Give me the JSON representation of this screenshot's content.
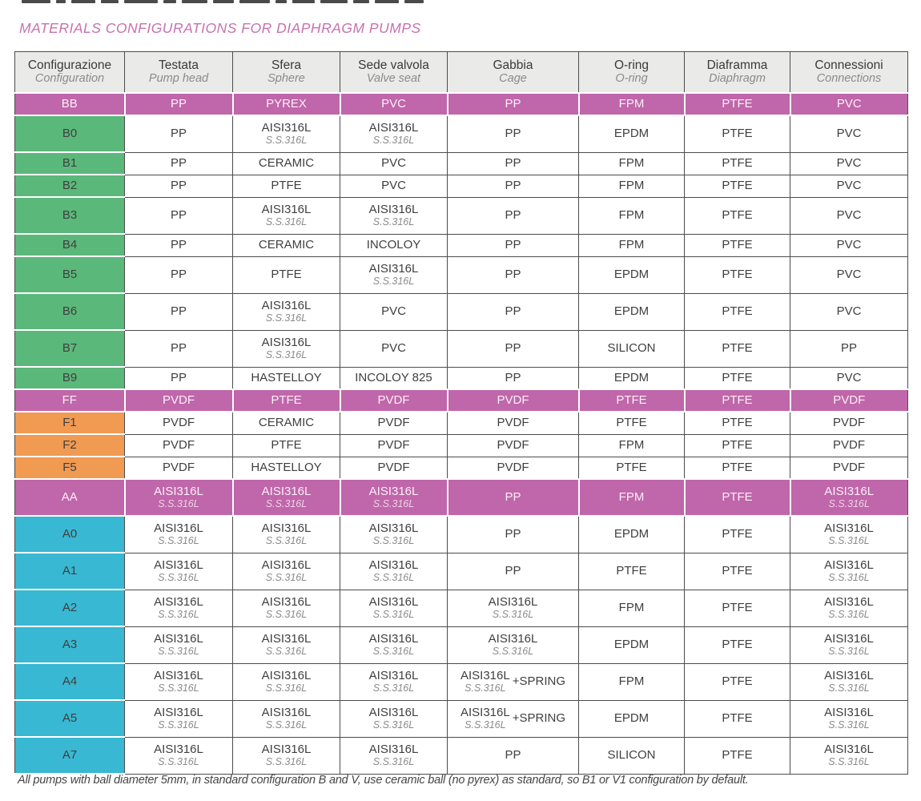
{
  "title": "MATERIALS CONFIGURATIONS FOR DIAPHRAGM PUMPS",
  "footnote": "All pumps with ball diameter 5mm, in standard configuration B and V, use ceramic ball (no pyrex) as standard, so B1 or V1 configuration by default.",
  "colors": {
    "title_pink": "#c671b1",
    "highlight_magenta": "#c066aa",
    "green_label": "#5bb87b",
    "orange_label": "#f09a52",
    "cyan_label": "#38b8d2",
    "header_gray": "#eaeae8",
    "border_dark": "#4c4c4c"
  },
  "table": {
    "columns": [
      {
        "it": "Configurazione",
        "en": "Configuration"
      },
      {
        "it": "Testata",
        "en": "Pump head"
      },
      {
        "it": "Sfera",
        "en": "Sphere"
      },
      {
        "it": "Sede valvola",
        "en": "Valve seat"
      },
      {
        "it": "Gabbia",
        "en": "Cage"
      },
      {
        "it": "O-ring",
        "en": "O-ring"
      },
      {
        "it": "Diaframma",
        "en": "Diaphragm"
      },
      {
        "it": "Connessioni",
        "en": "Connections"
      }
    ],
    "rows": [
      {
        "code": "BB",
        "group": "highlight",
        "cells": [
          [
            "PP"
          ],
          [
            "PYREX"
          ],
          [
            "PVC"
          ],
          [
            "PP"
          ],
          [
            "FPM"
          ],
          [
            "PTFE"
          ],
          [
            "PVC"
          ]
        ]
      },
      {
        "code": "B0",
        "group": "green",
        "cells": [
          [
            "PP"
          ],
          [
            "AISI316L",
            "S.S.316L"
          ],
          [
            "AISI316L",
            "S.S.316L"
          ],
          [
            "PP"
          ],
          [
            "EPDM"
          ],
          [
            "PTFE"
          ],
          [
            "PVC"
          ]
        ]
      },
      {
        "code": "B1",
        "group": "green",
        "cells": [
          [
            "PP"
          ],
          [
            "CERAMIC"
          ],
          [
            "PVC"
          ],
          [
            "PP"
          ],
          [
            "FPM"
          ],
          [
            "PTFE"
          ],
          [
            "PVC"
          ]
        ]
      },
      {
        "code": "B2",
        "group": "green",
        "cells": [
          [
            "PP"
          ],
          [
            "PTFE"
          ],
          [
            "PVC"
          ],
          [
            "PP"
          ],
          [
            "FPM"
          ],
          [
            "PTFE"
          ],
          [
            "PVC"
          ]
        ]
      },
      {
        "code": "B3",
        "group": "green",
        "cells": [
          [
            "PP"
          ],
          [
            "AISI316L",
            "S.S.316L"
          ],
          [
            "AISI316L",
            "S.S.316L"
          ],
          [
            "PP"
          ],
          [
            "FPM"
          ],
          [
            "PTFE"
          ],
          [
            "PVC"
          ]
        ]
      },
      {
        "code": "B4",
        "group": "green",
        "cells": [
          [
            "PP"
          ],
          [
            "CERAMIC"
          ],
          [
            "INCOLOY"
          ],
          [
            "PP"
          ],
          [
            "FPM"
          ],
          [
            "PTFE"
          ],
          [
            "PVC"
          ]
        ]
      },
      {
        "code": "B5",
        "group": "green",
        "cells": [
          [
            "PP"
          ],
          [
            "PTFE"
          ],
          [
            "AISI316L",
            "S.S.316L"
          ],
          [
            "PP"
          ],
          [
            "EPDM"
          ],
          [
            "PTFE"
          ],
          [
            "PVC"
          ]
        ]
      },
      {
        "code": "B6",
        "group": "green",
        "cells": [
          [
            "PP"
          ],
          [
            "AISI316L",
            "S.S.316L"
          ],
          [
            "PVC"
          ],
          [
            "PP"
          ],
          [
            "EPDM"
          ],
          [
            "PTFE"
          ],
          [
            "PVC"
          ]
        ]
      },
      {
        "code": "B7",
        "group": "green",
        "cells": [
          [
            "PP"
          ],
          [
            "AISI316L",
            "S.S.316L"
          ],
          [
            "PVC"
          ],
          [
            "PP"
          ],
          [
            "SILICON"
          ],
          [
            "PTFE"
          ],
          [
            "PP"
          ]
        ]
      },
      {
        "code": "B9",
        "group": "green",
        "cells": [
          [
            "PP"
          ],
          [
            "HASTELLOY"
          ],
          [
            "INCOLOY 825"
          ],
          [
            "PP"
          ],
          [
            "EPDM"
          ],
          [
            "PTFE"
          ],
          [
            "PVC"
          ]
        ]
      },
      {
        "code": "FF",
        "group": "highlight",
        "cells": [
          [
            "PVDF"
          ],
          [
            "PTFE"
          ],
          [
            "PVDF"
          ],
          [
            "PVDF"
          ],
          [
            "PTFE"
          ],
          [
            "PTFE"
          ],
          [
            "PVDF"
          ]
        ]
      },
      {
        "code": "F1",
        "group": "orange",
        "cells": [
          [
            "PVDF"
          ],
          [
            "CERAMIC"
          ],
          [
            "PVDF"
          ],
          [
            "PVDF"
          ],
          [
            "PTFE"
          ],
          [
            "PTFE"
          ],
          [
            "PVDF"
          ]
        ]
      },
      {
        "code": "F2",
        "group": "orange",
        "cells": [
          [
            "PVDF"
          ],
          [
            "PTFE"
          ],
          [
            "PVDF"
          ],
          [
            "PVDF"
          ],
          [
            "FPM"
          ],
          [
            "PTFE"
          ],
          [
            "PVDF"
          ]
        ]
      },
      {
        "code": "F5",
        "group": "orange",
        "cells": [
          [
            "PVDF"
          ],
          [
            "HASTELLOY"
          ],
          [
            "PVDF"
          ],
          [
            "PVDF"
          ],
          [
            "PTFE"
          ],
          [
            "PTFE"
          ],
          [
            "PVDF"
          ]
        ]
      },
      {
        "code": "AA",
        "group": "highlight",
        "cells": [
          [
            "AISI316L",
            "S.S.316L"
          ],
          [
            "AISI316L",
            "S.S.316L"
          ],
          [
            "AISI316L",
            "S.S.316L"
          ],
          [
            "PP"
          ],
          [
            "FPM"
          ],
          [
            "PTFE"
          ],
          [
            "AISI316L",
            "S.S.316L"
          ]
        ]
      },
      {
        "code": "A0",
        "group": "cyan",
        "cells": [
          [
            "AISI316L",
            "S.S.316L"
          ],
          [
            "AISI316L",
            "S.S.316L"
          ],
          [
            "AISI316L",
            "S.S.316L"
          ],
          [
            "PP"
          ],
          [
            "EPDM"
          ],
          [
            "PTFE"
          ],
          [
            "AISI316L",
            "S.S.316L"
          ]
        ]
      },
      {
        "code": "A1",
        "group": "cyan",
        "cells": [
          [
            "AISI316L",
            "S.S.316L"
          ],
          [
            "AISI316L",
            "S.S.316L"
          ],
          [
            "AISI316L",
            "S.S.316L"
          ],
          [
            "PP"
          ],
          [
            "PTFE"
          ],
          [
            "PTFE"
          ],
          [
            "AISI316L",
            "S.S.316L"
          ]
        ]
      },
      {
        "code": "A2",
        "group": "cyan",
        "cells": [
          [
            "AISI316L",
            "S.S.316L"
          ],
          [
            "AISI316L",
            "S.S.316L"
          ],
          [
            "AISI316L",
            "S.S.316L"
          ],
          [
            "AISI316L",
            "S.S.316L"
          ],
          [
            "FPM"
          ],
          [
            "PTFE"
          ],
          [
            "AISI316L",
            "S.S.316L"
          ]
        ]
      },
      {
        "code": "A3",
        "group": "cyan",
        "cells": [
          [
            "AISI316L",
            "S.S.316L"
          ],
          [
            "AISI316L",
            "S.S.316L"
          ],
          [
            "AISI316L",
            "S.S.316L"
          ],
          [
            "AISI316L",
            "S.S.316L"
          ],
          [
            "EPDM"
          ],
          [
            "PTFE"
          ],
          [
            "AISI316L",
            "S.S.316L"
          ]
        ]
      },
      {
        "code": "A4",
        "group": "cyan",
        "cells": [
          [
            "AISI316L",
            "S.S.316L"
          ],
          [
            "AISI316L",
            "S.S.316L"
          ],
          [
            "AISI316L",
            "S.S.316L"
          ],
          [
            "AISI316L",
            "S.S.316L",
            "+SPRING"
          ],
          [
            "FPM"
          ],
          [
            "PTFE"
          ],
          [
            "AISI316L",
            "S.S.316L"
          ]
        ]
      },
      {
        "code": "A5",
        "group": "cyan",
        "cells": [
          [
            "AISI316L",
            "S.S.316L"
          ],
          [
            "AISI316L",
            "S.S.316L"
          ],
          [
            "AISI316L",
            "S.S.316L"
          ],
          [
            "AISI316L",
            "S.S.316L",
            "+SPRING"
          ],
          [
            "EPDM"
          ],
          [
            "PTFE"
          ],
          [
            "AISI316L",
            "S.S.316L"
          ]
        ]
      },
      {
        "code": "A7",
        "group": "cyan",
        "cells": [
          [
            "AISI316L",
            "S.S.316L"
          ],
          [
            "AISI316L",
            "S.S.316L"
          ],
          [
            "AISI316L",
            "S.S.316L"
          ],
          [
            "PP"
          ],
          [
            "SILICON"
          ],
          [
            "PTFE"
          ],
          [
            "AISI316L",
            "S.S.316L"
          ]
        ]
      }
    ]
  }
}
